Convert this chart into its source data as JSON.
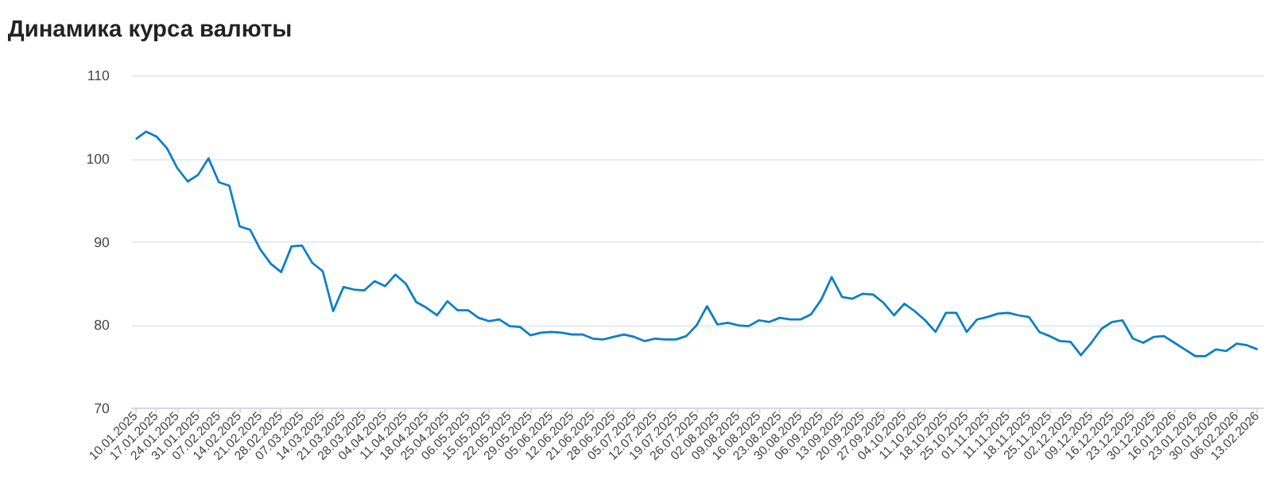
{
  "chart_data": {
    "type": "line",
    "title": "Динамика курса валюты",
    "categories": [
      "10.01.2025",
      null,
      "17.01.2025",
      null,
      "24.01.2025",
      null,
      "31.01.2025",
      null,
      "07.02.2025",
      null,
      "14.02.2025",
      null,
      "21.02.2025",
      null,
      "28.02.2025",
      null,
      "07.03.2025",
      null,
      "14.03.2025",
      null,
      "21.03.2025",
      null,
      "28.03.2025",
      null,
      "04.04.2025",
      null,
      "11.04.2025",
      null,
      "18.04.2025",
      null,
      "25.04.2025",
      null,
      "06.05.2025",
      null,
      "15.05.2025",
      null,
      "22.05.2025",
      null,
      "29.05.2025",
      null,
      "05.06.2025",
      null,
      "12.06.2025",
      null,
      "21.06.2025",
      null,
      "28.06.2025",
      null,
      "05.07.2025",
      null,
      "12.07.2025",
      null,
      "19.07.2025",
      null,
      "26.07.2025",
      null,
      "02.08.2025",
      null,
      "09.08.2025",
      null,
      "16.08.2025",
      null,
      "23.08.2025",
      null,
      "30.08.2025",
      null,
      "06.09.2025",
      null,
      "13.09.2025",
      null,
      "20.09.2025",
      null,
      "27.09.2025",
      null,
      "04.10.2025",
      null,
      "11.10.2025",
      null,
      "18.10.2025",
      null,
      "25.10.2025",
      null,
      "01.11.2025",
      null,
      "11.11.2025",
      null,
      "18.11.2025",
      null,
      "25.11.2025",
      null,
      "02.12.2025",
      null,
      "09.12.2025",
      null,
      "16.12.2025",
      null,
      "23.12.2025",
      null,
      "30.12.2025",
      null,
      "16.01.2026",
      null,
      "23.01.2026",
      null,
      "30.01.2026",
      null,
      "06.02.2026",
      null,
      "13.02.2026"
    ],
    "series": [
      {
        "color": "#0a7fc8",
        "values": [
          102.3,
          103.2,
          102.6,
          101.2,
          98.8,
          97.2,
          98.0,
          100.0,
          97.1,
          96.7,
          91.8,
          91.4,
          89.0,
          87.3,
          86.3,
          89.4,
          89.5,
          87.4,
          86.4,
          81.6,
          84.5,
          84.2,
          84.1,
          85.2,
          84.6,
          86.0,
          84.9,
          82.7,
          82.0,
          81.1,
          82.8,
          81.7,
          81.7,
          80.8,
          80.4,
          80.6,
          79.8,
          79.7,
          78.7,
          79.0,
          79.1,
          79.0,
          78.8,
          78.8,
          78.3,
          78.2,
          78.5,
          78.8,
          78.5,
          78.0,
          78.3,
          78.2,
          78.2,
          78.6,
          79.9,
          82.2,
          80.0,
          80.2,
          79.9,
          79.8,
          80.5,
          80.3,
          80.8,
          80.6,
          80.6,
          81.2,
          83.0,
          85.7,
          83.3,
          83.1,
          83.7,
          83.6,
          82.6,
          81.1,
          82.5,
          81.6,
          80.5,
          79.1,
          81.4,
          81.4,
          79.1,
          80.6,
          80.9,
          81.3,
          81.4,
          81.1,
          80.9,
          79.1,
          78.6,
          78.0,
          77.9,
          76.3,
          77.8,
          79.5,
          80.3,
          80.5,
          78.3,
          77.8,
          78.5,
          78.6,
          77.8,
          77.0,
          76.2,
          76.2,
          77.0,
          76.8,
          77.7,
          77.5,
          77.0
        ]
      }
    ],
    "ylim": [
      70,
      110
    ],
    "yticks": [
      70,
      80,
      90,
      100,
      110
    ],
    "grid": "y",
    "marker": "none",
    "line_style": "solid"
  }
}
